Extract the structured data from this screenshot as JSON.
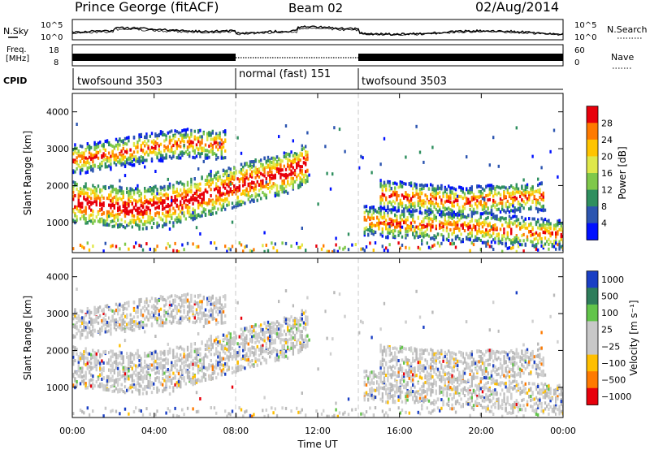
{
  "header": {
    "station": "Prince George (fitACF)",
    "beam": "Beam 02",
    "date": "02/Aug/2014"
  },
  "strip_labels": {
    "nsky": "N.Sky",
    "nsearch": "N.Search",
    "freq_line1": "Freq.",
    "freq_line2": "[MHz]",
    "nave": "Nave",
    "cpid": "CPID"
  },
  "noise_ticks_left": [
    "10^5",
    "10^0"
  ],
  "noise_ticks_right": [
    "10^5",
    "10^0"
  ],
  "freq_ticks": [
    "18",
    "8"
  ],
  "nave_ticks": [
    "60",
    "0"
  ],
  "cpid_segments": [
    {
      "label": "twofsound 3503",
      "start_hour": 0,
      "end_hour": 8
    },
    {
      "label": "normal (fast) 151",
      "start_hour": 8,
      "end_hour": 14
    },
    {
      "label": "twofsound 3503",
      "start_hour": 14,
      "end_hour": 24
    }
  ],
  "chart_data": [
    {
      "type": "heatmap",
      "title": "",
      "ylabel": "Slant Range [km]",
      "xlabel": "",
      "xlim": [
        0,
        24
      ],
      "ylim": [
        180,
        4500
      ],
      "yticks": [
        "1000",
        "2000",
        "3000",
        "4000"
      ],
      "colorbar": {
        "label": "Power [dB]",
        "ticks": [
          "28",
          "24",
          "20",
          "16",
          "12",
          "8",
          "4"
        ],
        "colors": [
          "#e8000b",
          "#ff7a00",
          "#ffc400",
          "#dfe84a",
          "#7fc84a",
          "#2f8f5f",
          "#2c55b0",
          "#0010ff"
        ]
      },
      "bands": [
        {
          "name": "",
          "x": [
            0.0,
            1.5,
            3.0,
            4.5,
            6.0,
            7.5,
            9.0,
            10.5,
            11.5
          ],
          "y": [
            1550,
            1450,
            1350,
            1450,
            1650,
            1900,
            2150,
            2350,
            2600
          ]
        },
        {
          "name": "",
          "x": [
            0.0,
            2.0,
            4.0,
            6.0,
            7.5
          ],
          "y": [
            2700,
            2850,
            3050,
            3150,
            3100
          ]
        },
        {
          "name": "",
          "x": [
            14.2,
            16.0,
            18.0,
            20.0,
            22.0,
            24.0
          ],
          "y": [
            1050,
            950,
            900,
            850,
            750,
            650
          ]
        },
        {
          "name": "",
          "x": [
            15.0,
            17.0,
            19.0,
            21.0,
            23.0
          ],
          "y": [
            1750,
            1650,
            1550,
            1650,
            1700
          ]
        }
      ]
    },
    {
      "type": "heatmap",
      "title": "",
      "ylabel": "Slant Range [km]",
      "xlabel": "Time UT",
      "xlim": [
        0,
        24
      ],
      "ylim": [
        180,
        4500
      ],
      "xticks": [
        "00:00",
        "04:00",
        "08:00",
        "12:00",
        "16:00",
        "20:00",
        "00:00"
      ],
      "yticks": [
        "1000",
        "2000",
        "3000",
        "4000"
      ],
      "colorbar": {
        "label": "Velocity [m s⁻¹]",
        "ticks": [
          "1000",
          "500",
          "100",
          "25",
          "−25",
          "−100",
          "−500",
          "−1000"
        ],
        "colors": [
          "#1a3fc4",
          "#2e7d5b",
          "#62c44a",
          "#c8c8c8",
          "#c8c8c8",
          "#ffbf00",
          "#ff7a00",
          "#e8000b"
        ]
      }
    }
  ]
}
